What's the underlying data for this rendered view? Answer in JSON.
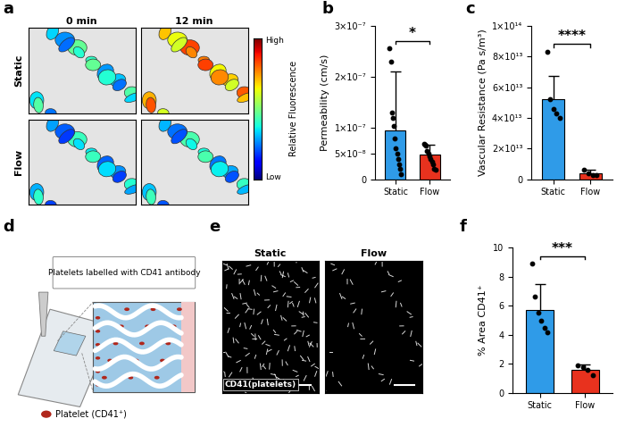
{
  "chart_data": [
    {
      "type": "bar",
      "panel": "b",
      "ylabel": "Permeability (cm/s)",
      "categories": [
        "Static",
        "Flow"
      ],
      "values": [
        9.5e-08,
        4.8e-08
      ],
      "errors": [
        1.15e-07,
        2e-08
      ],
      "points": [
        [
          2.55e-07,
          2.3e-07,
          1.3e-07,
          1.2e-07,
          1.05e-07,
          8e-08,
          6e-08,
          5e-08,
          4e-08,
          3e-08,
          2e-08,
          1e-08
        ],
        [
          7e-08,
          6.8e-08,
          6.5e-08,
          5.5e-08,
          5e-08,
          4.5e-08,
          4e-08,
          3.5e-08,
          3e-08,
          2e-08,
          1.8e-08
        ]
      ],
      "colors": [
        "#2f9be8",
        "#e8321e"
      ],
      "ylim": [
        0,
        3e-07
      ],
      "yticks": [
        0,
        {
          "value": 5e-08,
          "label": "5×10⁻⁸"
        },
        {
          "value": 1e-07,
          "label": "1×10⁻⁷"
        },
        {
          "value": 2e-07,
          "label": "2×10⁻⁷"
        },
        {
          "value": 3e-07,
          "label": "3×10⁻⁷"
        }
      ],
      "annotations": [
        "*"
      ]
    },
    {
      "type": "bar",
      "panel": "c",
      "ylabel": "Vascular Resistance (Pa s/m³)",
      "categories": [
        "Static",
        "Flow"
      ],
      "values": [
        52000000000000.0,
        4000000000000.0
      ],
      "errors": [
        15000000000000.0,
        2000000000000.0
      ],
      "points": [
        [
          83000000000000.0,
          52000000000000.0,
          46000000000000.0,
          43000000000000.0,
          40000000000000.0
        ],
        [
          6000000000000.0,
          4000000000000.0,
          3000000000000.0,
          2500000000000.0
        ]
      ],
      "colors": [
        "#2f9be8",
        "#e8321e"
      ],
      "ylim": [
        0,
        100000000000000.0
      ],
      "yticks": [
        0,
        {
          "value": 20000000000000.0,
          "label": "2×10¹³"
        },
        {
          "value": 40000000000000.0,
          "label": "4×10¹³"
        },
        {
          "value": 60000000000000.0,
          "label": "6×10¹³"
        },
        {
          "value": 80000000000000.0,
          "label": "8×10¹³"
        },
        {
          "value": 100000000000000.0,
          "label": "1×10¹⁴"
        }
      ],
      "annotations": [
        "****"
      ]
    },
    {
      "type": "bar",
      "panel": "f",
      "ylabel": "% Area CD41⁺",
      "categories": [
        "Static",
        "Flow"
      ],
      "values": [
        5.7,
        1.6
      ],
      "errors": [
        1.8,
        0.35
      ],
      "points": [
        [
          8.9,
          6.6,
          5.5,
          5.0,
          4.5,
          4.2
        ],
        [
          1.9,
          1.8,
          1.6,
          1.2
        ]
      ],
      "colors": [
        "#2f9be8",
        "#e8321e"
      ],
      "ylim": [
        0,
        10
      ],
      "yticks": [
        0,
        2,
        4,
        6,
        8,
        10
      ],
      "annotations": [
        "***"
      ]
    }
  ],
  "panels": {
    "a": {
      "label": "a",
      "columns": [
        "0 min",
        "12 min"
      ],
      "rows": [
        "Static",
        "Flow"
      ],
      "colorbar": {
        "title": "Relative Fluorescence",
        "high": "High",
        "low": "Low"
      }
    },
    "d": {
      "label": "d",
      "texts": [
        "Platelets labelled with CD41 antibody",
        "Platelet (CD41⁺)"
      ]
    },
    "e": {
      "label": "e",
      "columns": [
        "Static",
        "Flow"
      ],
      "stain": "CD41(platelets)"
    }
  }
}
